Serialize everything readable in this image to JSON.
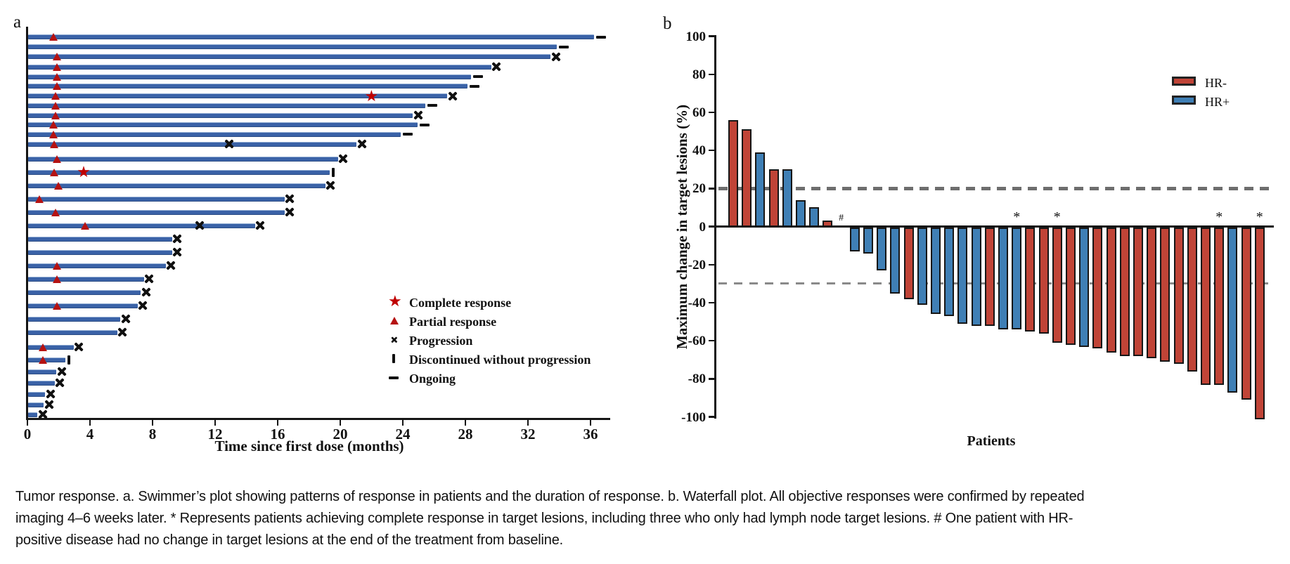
{
  "figure": {
    "caption": "Tumor response. a. Swimmer’s plot showing patterns of response in patients and the duration of response. b. Waterfall plot. All objective responses were confirmed by repeated imaging 4–6 weeks later. * Represents patients achieving complete response in target lesions, including three who only had lymph node target lesions. # One patient with HR-positive disease had no change in target lesions at the end of the treatment from baseline."
  },
  "colors": {
    "swimmer_bar": "#3a62a7",
    "marker_red": "#b51212",
    "hr_negative": "#c04437",
    "hr_positive": "#3f7fb5",
    "axis": "#151515",
    "dashed_line": "#6e6e6e"
  },
  "chart_data": [
    {
      "type": "bar",
      "variant": "swimmer",
      "panel_label": "a",
      "xlabel": "Time since first dose (months)",
      "xlim": [
        0,
        37.5
      ],
      "x_ticks": [
        0,
        4,
        8,
        12,
        16,
        20,
        24,
        28,
        32,
        36
      ],
      "legend": [
        {
          "symbol": "star",
          "label": "Complete response"
        },
        {
          "symbol": "triangle",
          "label": "Partial response"
        },
        {
          "symbol": "x",
          "label": "Progression"
        },
        {
          "symbol": "vbar",
          "label": "Discontinued without progression"
        },
        {
          "symbol": "dash",
          "label": "Ongoing"
        }
      ],
      "bars": [
        {
          "duration": 36.2,
          "end": "ongoing",
          "pr": 1.7
        },
        {
          "duration": 33.8,
          "end": "ongoing"
        },
        {
          "duration": 33.4,
          "end": "progression",
          "pr": 1.9
        },
        {
          "duration": 29.6,
          "end": "progression",
          "pr": 1.9
        },
        {
          "duration": 28.3,
          "end": "ongoing",
          "pr": 1.9
        },
        {
          "duration": 28.1,
          "end": "ongoing",
          "pr": 1.9
        },
        {
          "duration": 26.8,
          "end": "progression",
          "pr": 1.8,
          "cr": 22.0
        },
        {
          "duration": 25.4,
          "end": "ongoing",
          "pr": 1.8
        },
        {
          "duration": 24.6,
          "end": "progression",
          "pr": 1.8
        },
        {
          "duration": 24.9,
          "end": "ongoing",
          "pr": 1.7
        },
        {
          "duration": 23.8,
          "end": "ongoing",
          "pr": 1.7
        },
        {
          "duration": 21.0,
          "end": "progression",
          "pr": 1.75,
          "x_mid": [
            12.9
          ]
        },
        {
          "duration": 19.8,
          "end": "progression",
          "pr": 1.9
        },
        {
          "duration": 19.3,
          "end": "discontinued",
          "pr": 1.75,
          "cr": 3.6
        },
        {
          "duration": 19.0,
          "end": "progression",
          "pr": 2.0
        },
        {
          "duration": 16.4,
          "end": "progression",
          "pr": 0.8
        },
        {
          "duration": 16.4,
          "end": "progression",
          "pr": 1.8
        },
        {
          "duration": 14.5,
          "end": "progression",
          "pr": 3.7,
          "x_mid": [
            11.0
          ]
        },
        {
          "duration": 9.2,
          "end": "progression"
        },
        {
          "duration": 9.2,
          "end": "progression"
        },
        {
          "duration": 8.8,
          "end": "progression",
          "pr": 1.9
        },
        {
          "duration": 7.4,
          "end": "progression",
          "pr": 1.9
        },
        {
          "duration": 7.2,
          "end": "progression"
        },
        {
          "duration": 7.0,
          "end": "progression",
          "pr": 1.9
        },
        {
          "duration": 5.9,
          "end": "progression"
        },
        {
          "duration": 5.7,
          "end": "progression"
        },
        {
          "duration": 2.9,
          "end": "progression",
          "pr": 1.0
        },
        {
          "duration": 2.4,
          "end": "discontinued",
          "pr": 1.0
        },
        {
          "duration": 1.8,
          "end": "progression"
        },
        {
          "duration": 1.7,
          "end": "progression"
        },
        {
          "duration": 1.1,
          "end": "progression"
        },
        {
          "duration": 1.0,
          "end": "progression"
        },
        {
          "duration": 0.6,
          "end": "progression"
        }
      ]
    },
    {
      "type": "bar",
      "variant": "waterfall",
      "panel_label": "b",
      "ylabel": "Maximum change in target lesions (%)",
      "xlabel": "Patients",
      "ylim": [
        -100,
        100
      ],
      "y_ticks": [
        100,
        80,
        60,
        40,
        20,
        0,
        -20,
        -40,
        -60,
        -80,
        -100
      ],
      "reference_lines": [
        20,
        -30
      ],
      "legend": [
        {
          "label": "HR-",
          "color": "#c04437"
        },
        {
          "label": "HR+",
          "color": "#3f7fb5"
        }
      ],
      "bars": [
        {
          "value": 56,
          "group": "HR-"
        },
        {
          "value": 51,
          "group": "HR-"
        },
        {
          "value": 39,
          "group": "HR+"
        },
        {
          "value": 30,
          "group": "HR-"
        },
        {
          "value": 30,
          "group": "HR+"
        },
        {
          "value": 14,
          "group": "HR+"
        },
        {
          "value": 10,
          "group": "HR+"
        },
        {
          "value": 3,
          "group": "HR-"
        },
        {
          "value": 0,
          "group": "HR+",
          "mark": "#"
        },
        {
          "value": -12,
          "group": "HR+"
        },
        {
          "value": -13,
          "group": "HR+"
        },
        {
          "value": -22,
          "group": "HR+"
        },
        {
          "value": -34,
          "group": "HR+"
        },
        {
          "value": -37,
          "group": "HR-"
        },
        {
          "value": -40,
          "group": "HR+"
        },
        {
          "value": -45,
          "group": "HR+"
        },
        {
          "value": -46,
          "group": "HR+"
        },
        {
          "value": -50,
          "group": "HR+"
        },
        {
          "value": -51,
          "group": "HR+"
        },
        {
          "value": -51,
          "group": "HR-"
        },
        {
          "value": -53,
          "group": "HR+"
        },
        {
          "value": -53,
          "group": "HR+",
          "mark": "*"
        },
        {
          "value": -54,
          "group": "HR-"
        },
        {
          "value": -55,
          "group": "HR-"
        },
        {
          "value": -60,
          "group": "HR-",
          "mark": "*"
        },
        {
          "value": -61,
          "group": "HR-"
        },
        {
          "value": -62,
          "group": "HR+"
        },
        {
          "value": -63,
          "group": "HR-"
        },
        {
          "value": -65,
          "group": "HR-"
        },
        {
          "value": -67,
          "group": "HR-"
        },
        {
          "value": -67,
          "group": "HR-"
        },
        {
          "value": -68,
          "group": "HR-"
        },
        {
          "value": -70,
          "group": "HR-"
        },
        {
          "value": -71,
          "group": "HR-"
        },
        {
          "value": -75,
          "group": "HR-"
        },
        {
          "value": -82,
          "group": "HR-"
        },
        {
          "value": -82,
          "group": "HR-",
          "mark": "*"
        },
        {
          "value": -86,
          "group": "HR+"
        },
        {
          "value": -90,
          "group": "HR-"
        },
        {
          "value": -100,
          "group": "HR-",
          "mark": "*"
        }
      ]
    }
  ]
}
